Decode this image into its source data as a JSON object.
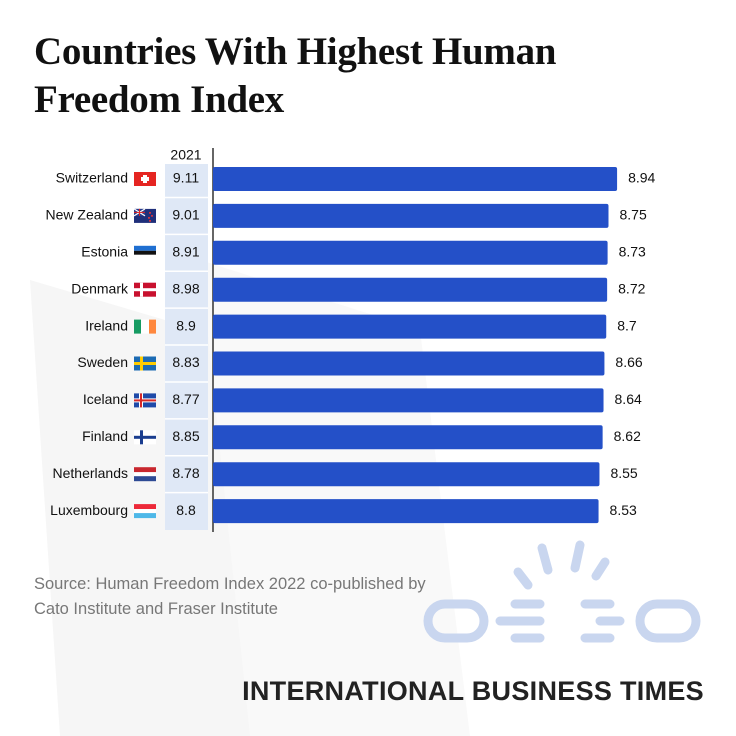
{
  "chart_data": {
    "type": "bar",
    "title": "Countries With Highest Human Freedom Index",
    "categories": [
      "Switzerland",
      "New Zealand",
      "Estonia",
      "Denmark",
      "Ireland",
      "Sweden",
      "Iceland",
      "Finland",
      "Netherlands",
      "Luxembourg"
    ],
    "values": [
      8.94,
      8.75,
      8.73,
      8.72,
      8.7,
      8.66,
      8.64,
      8.62,
      8.55,
      8.53
    ],
    "color": "#2450c8",
    "table_column": {
      "name": "2021",
      "values": [
        9.11,
        9.01,
        8.91,
        8.98,
        8.9,
        8.83,
        8.77,
        8.85,
        8.78,
        8.8
      ]
    },
    "source": "Source: Human Freedom Index 2022 co-published by Cato Institute and Fraser Institute",
    "brand": "INTERNATIONAL BUSINESS TIMES"
  }
}
